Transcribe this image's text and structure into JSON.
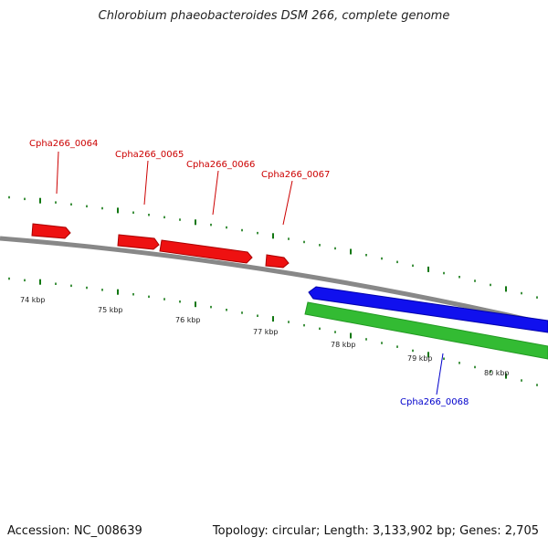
{
  "title": "Chlorobium phaeobacteroides DSM 266, complete genome",
  "footer": {
    "accession": "Accession: NC_008639",
    "summary": "Topology: circular; Length: 3,133,902 bp; Genes: 2,705"
  },
  "colors": {
    "forward_gene": "#ee0000",
    "reverse_gene": "#0000ee",
    "gc_bar": "#33bb33",
    "backbone": "#888888",
    "tick": "#117711",
    "label_forward": "#cc0000",
    "label_reverse": "#0000cc"
  },
  "scale_labels": [
    "74 kbp",
    "75 kbp",
    "76 kbp",
    "77 kbp",
    "78 kbp",
    "79 kbp",
    "80 kbp"
  ],
  "genes": [
    {
      "name": "Cpha266_0064",
      "strand": "forward"
    },
    {
      "name": "Cpha266_0065",
      "strand": "forward"
    },
    {
      "name": "Cpha266_0066",
      "strand": "forward"
    },
    {
      "name": "Cpha266_0067",
      "strand": "forward"
    },
    {
      "name": "Cpha266_0068",
      "strand": "reverse"
    }
  ]
}
